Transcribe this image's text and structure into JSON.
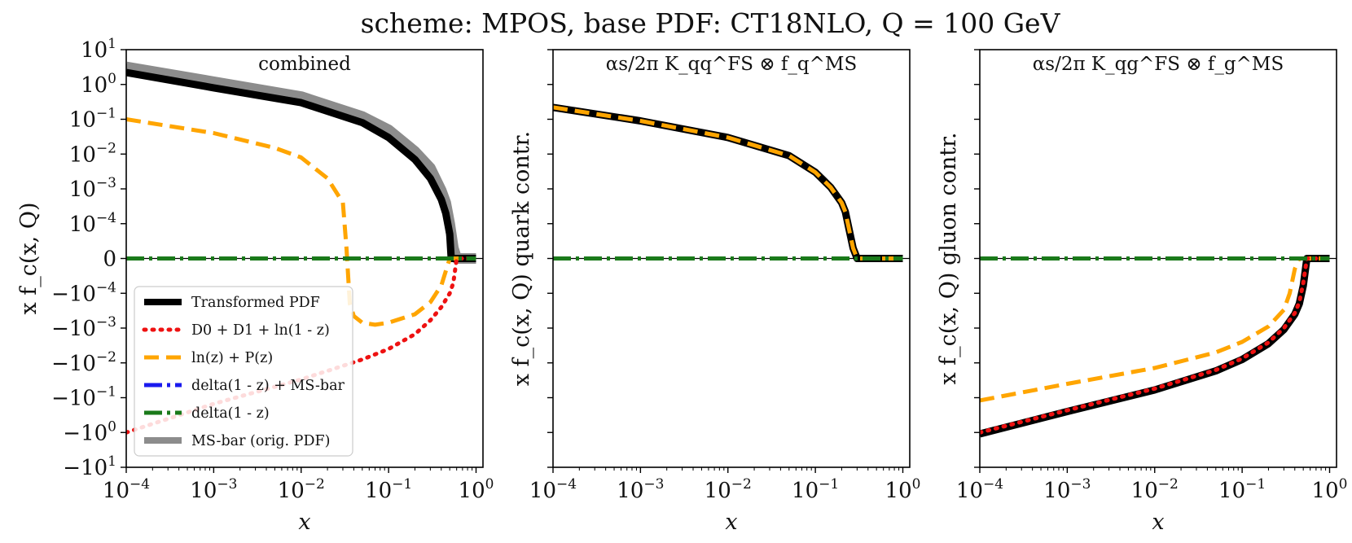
{
  "figure_title": "scheme: MPOS, base PDF: CT18NLO, Q = 100 GeV",
  "chart_data": [
    {
      "type": "line",
      "panel_label": "combined",
      "xlabel": "x",
      "ylabel": "x f_c(x, Q)",
      "xscale": "log",
      "yscale": "symlog",
      "xlim": [
        0.0001,
        1.2
      ],
      "ylim": [
        -10,
        10
      ],
      "x_ticks": [
        "10^-4",
        "10^-3",
        "10^-2",
        "10^-1",
        "10^0"
      ],
      "y_ticks": [
        "10^1",
        "10^0",
        "10^-1",
        "10^-2",
        "10^-3",
        "10^-4",
        "0",
        "-10^-4",
        "-10^-3",
        "-10^-2",
        "-10^-1",
        "-10^0",
        "-10^1"
      ],
      "legend_position": "lower-left",
      "series": [
        {
          "name": "MS-bar (orig. PDF)",
          "color": "#8c8c8c",
          "style": "solid",
          "x": [
            0.0001,
            0.001,
            0.01,
            0.05,
            0.1,
            0.2,
            0.3,
            0.4,
            0.45,
            0.5,
            0.55,
            0.6,
            0.65,
            0.7,
            0.8,
            1.0
          ],
          "y": [
            3.2,
            1.2,
            0.45,
            0.12,
            0.05,
            0.012,
            0.004,
            0.0009,
            0.0004,
            0.0001,
            2e-05,
            3e-06,
            3e-07,
            0,
            0,
            0
          ]
        },
        {
          "name": "Transformed PDF",
          "color": "#000000",
          "style": "solid",
          "x": [
            0.0001,
            0.001,
            0.01,
            0.05,
            0.1,
            0.2,
            0.3,
            0.4,
            0.45,
            0.5,
            0.52,
            0.55,
            0.6,
            0.65,
            0.8,
            1.0
          ],
          "y": [
            2.2,
            0.8,
            0.3,
            0.08,
            0.03,
            0.007,
            0.002,
            0.0005,
            0.0002,
            5e-05,
            1e-05,
            1e-06,
            0,
            0,
            0,
            0
          ]
        },
        {
          "name": "D0 + D1 + ln(1 - z)",
          "color": "#ee1111",
          "style": "dotted",
          "x": [
            0.0001,
            0.001,
            0.01,
            0.05,
            0.1,
            0.2,
            0.3,
            0.4,
            0.5,
            0.55,
            0.6,
            0.65,
            0.7,
            0.8,
            1.0
          ],
          "y": [
            -1.0,
            -0.15,
            -0.03,
            -0.008,
            -0.004,
            -0.0015,
            -0.0006,
            -0.00025,
            -0.0001,
            -5e-05,
            -1e-05,
            -1e-06,
            0,
            0,
            0
          ]
        },
        {
          "name": "ln(z) + P(z)",
          "color": "#ffa500",
          "style": "dashed",
          "x": [
            0.0001,
            0.001,
            0.005,
            0.01,
            0.02,
            0.03,
            0.033,
            0.036,
            0.04,
            0.05,
            0.07,
            0.1,
            0.2,
            0.3,
            0.4,
            0.5,
            0.6,
            0.65,
            0.7,
            1.0
          ],
          "y": [
            0.1,
            0.04,
            0.015,
            0.008,
            0.002,
            0.0004,
            2e-05,
            -0.0002,
            -0.00045,
            -0.0007,
            -0.0008,
            -0.0007,
            -0.0004,
            -0.00018,
            -6e-05,
            -1e-05,
            0,
            0,
            0,
            0
          ]
        },
        {
          "name": "delta(1 - z) + MS-bar",
          "color": "#1a1aee",
          "style": "dashdot",
          "x": [
            0.0001,
            1.0
          ],
          "y": [
            0,
            0
          ]
        },
        {
          "name": "delta(1 - z)",
          "color": "#1a7a1a",
          "style": "dashdot",
          "x": [
            0.0001,
            1.0
          ],
          "y": [
            0,
            0
          ]
        }
      ]
    },
    {
      "type": "line",
      "panel_label": "αs/2π K_qq^FS ⊗ f_q^MS",
      "xlabel": "x",
      "ylabel": "x f_c(x, Q) quark contr.",
      "xscale": "log",
      "yscale": "symlog",
      "xlim": [
        0.0001,
        1.2
      ],
      "ylim": [
        -10,
        10
      ],
      "x_ticks": [
        "10^-4",
        "10^-3",
        "10^-2",
        "10^-1",
        "10^0"
      ],
      "series": [
        {
          "name": "Transformed PDF",
          "color": "#000000",
          "style": "solid",
          "x": [
            0.0001,
            0.001,
            0.01,
            0.05,
            0.1,
            0.15,
            0.2,
            0.22,
            0.24,
            0.27,
            0.3,
            0.35,
            0.4,
            0.5,
            0.7,
            1.0
          ],
          "y": [
            0.22,
            0.09,
            0.03,
            0.009,
            0.003,
            0.0011,
            0.0004,
            0.00022,
            8e-05,
            2e-05,
            5e-06,
            1e-06,
            0,
            0,
            0,
            0
          ]
        },
        {
          "name": "ln(z) + P(z)",
          "color": "#ffa500",
          "style": "dashed",
          "x": [
            0.0001,
            0.001,
            0.01,
            0.05,
            0.1,
            0.15,
            0.2,
            0.22,
            0.24,
            0.27,
            0.3,
            0.35,
            0.4,
            0.5,
            0.7,
            1.0
          ],
          "y": [
            0.22,
            0.09,
            0.03,
            0.009,
            0.003,
            0.0011,
            0.0004,
            0.00022,
            8e-05,
            2e-05,
            5e-06,
            1e-06,
            0,
            0,
            0,
            0
          ]
        },
        {
          "name": "delta(1 - z) + MS-bar",
          "color": "#1a1aee",
          "style": "dashdot",
          "x": [
            0.0001,
            1.0
          ],
          "y": [
            0,
            0
          ]
        },
        {
          "name": "delta(1 - z)",
          "color": "#1a7a1a",
          "style": "dashdot",
          "x": [
            0.0001,
            1.0
          ],
          "y": [
            0,
            0
          ]
        }
      ]
    },
    {
      "type": "line",
      "panel_label": "αs/2π K_qg^FS ⊗ f_g^MS",
      "xlabel": "x",
      "ylabel": "x f_c(x, Q) gluon contr.",
      "xscale": "log",
      "yscale": "symlog",
      "xlim": [
        0.0001,
        1.2
      ],
      "ylim": [
        -10,
        10
      ],
      "x_ticks": [
        "10^-4",
        "10^-3",
        "10^-2",
        "10^-1",
        "10^0"
      ],
      "series": [
        {
          "name": "Transformed PDF",
          "color": "#000000",
          "style": "solid",
          "x": [
            0.0001,
            0.001,
            0.01,
            0.05,
            0.1,
            0.2,
            0.3,
            0.4,
            0.45,
            0.5,
            0.55,
            0.6,
            0.65,
            0.7,
            1.0
          ],
          "y": [
            -1.1,
            -0.25,
            -0.06,
            -0.017,
            -0.008,
            -0.0028,
            -0.0011,
            -0.0004,
            -0.0002,
            -6e-05,
            -1e-05,
            0,
            0,
            0,
            0
          ]
        },
        {
          "name": "D0 + D1 + ln(1 - z)",
          "color": "#ee1111",
          "style": "dotted",
          "x": [
            0.0001,
            0.001,
            0.01,
            0.05,
            0.1,
            0.2,
            0.3,
            0.4,
            0.45,
            0.5,
            0.55,
            0.6,
            0.65,
            0.7,
            1.0
          ],
          "y": [
            -1.0,
            -0.23,
            -0.055,
            -0.016,
            -0.0075,
            -0.0026,
            -0.001,
            -0.00037,
            -0.00018,
            -5e-05,
            -8e-06,
            0,
            0,
            0,
            0
          ]
        },
        {
          "name": "ln(z) + P(z)",
          "color": "#ffa500",
          "style": "dashed",
          "x": [
            0.0001,
            0.001,
            0.01,
            0.05,
            0.1,
            0.2,
            0.3,
            0.35,
            0.4,
            0.45,
            0.5,
            0.55,
            0.6,
            1.0
          ],
          "y": [
            -0.12,
            -0.04,
            -0.014,
            -0.005,
            -0.0025,
            -0.0009,
            -0.0003,
            -0.0001,
            -2e-05,
            -3e-06,
            0,
            0,
            0,
            0
          ]
        },
        {
          "name": "delta(1 - z) + MS-bar",
          "color": "#1a1aee",
          "style": "dashdot",
          "x": [
            0.0001,
            1.0
          ],
          "y": [
            0,
            0
          ]
        },
        {
          "name": "delta(1 - z)",
          "color": "#1a7a1a",
          "style": "dashdot",
          "x": [
            0.0001,
            1.0
          ],
          "y": [
            0,
            0
          ]
        }
      ]
    }
  ],
  "legend": {
    "entries": [
      {
        "label": "Transformed PDF",
        "color": "#000000",
        "style": "solid"
      },
      {
        "label": "D0 + D1 + ln(1 - z)",
        "color": "#ee1111",
        "style": "dotted"
      },
      {
        "label": "ln(z) + P(z)",
        "color": "#ffa500",
        "style": "dashed"
      },
      {
        "label": "delta(1 - z) + MS-bar",
        "color": "#1a1aee",
        "style": "dashdot"
      },
      {
        "label": "delta(1 - z)",
        "color": "#1a7a1a",
        "style": "dashdot"
      },
      {
        "label": "MS-bar (orig. PDF)",
        "color": "#8c8c8c",
        "style": "solid"
      }
    ]
  }
}
